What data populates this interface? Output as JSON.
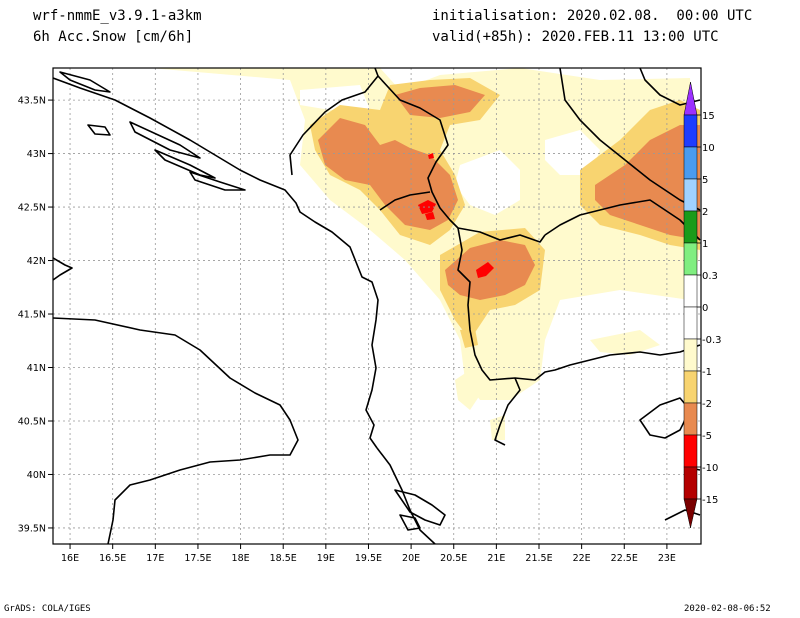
{
  "header": {
    "model": "wrf-nmmE_v3.9.1-a3km",
    "field": "6h Acc.Snow [cm/6h]",
    "init": "initialisation: 2020.02.08.  00:00 UTC",
    "valid": "valid(+85h): 2020.FEB.11 13:00 UTC"
  },
  "map": {
    "lat_labels": [
      "43.5N",
      "43N",
      "42.5N",
      "42N",
      "41.5N",
      "41N",
      "40.5N",
      "40N",
      "39.5N"
    ],
    "lon_labels": [
      "16E",
      "16.5E",
      "17E",
      "17.5E",
      "18E",
      "18.5E",
      "19E",
      "19.5E",
      "20E",
      "20.5E",
      "21E",
      "21.5E",
      "22E",
      "22.5E",
      "23E"
    ],
    "lat_range": [
      39.35,
      43.8
    ],
    "lon_range": [
      15.8,
      23.4
    ],
    "grid": "dotted"
  },
  "colorbar": {
    "labels": [
      "15",
      "10",
      "5",
      "2",
      "1",
      "0.3",
      "0",
      "-0.3",
      "-1",
      "-2",
      "-5",
      "-10",
      "-15"
    ],
    "colors": {
      "purple": "#9b30ff",
      "blue": "#1e3cff",
      "mid_blue": "#4a9bf0",
      "light_blue": "#a0d2ff",
      "green": "#1a9b1a",
      "light_green": "#80ee80",
      "white": "#ffffff",
      "pale_yellow": "#fffacd",
      "yellow": "#f8d470",
      "orange": "#f0a050",
      "dark_orange": "#e88a50",
      "red": "#ff0000",
      "dark_red": "#b40000",
      "maroon": "#7a0000"
    }
  },
  "footer": {
    "left": "GrADS: COLA/IGES",
    "right": "2020-02-08-06:52"
  }
}
